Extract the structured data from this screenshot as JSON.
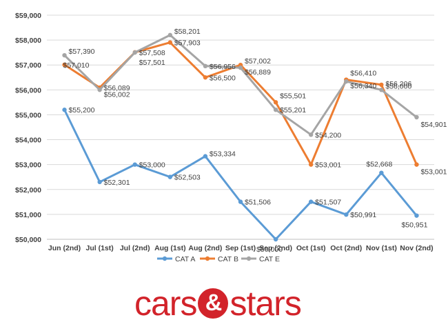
{
  "chart_data": {
    "type": "line",
    "categories": [
      "Jun (2nd)",
      "Jul (1st)",
      "Jul (2nd)",
      "Aug (1st)",
      "Aug (2nd)",
      "Sep (1st)",
      "Sep (2nd)",
      "Oct (1st)",
      "Oct (2nd)",
      "Nov (1st)",
      "Nov (2nd)"
    ],
    "series": [
      {
        "name": "CAT A",
        "color": "#5b9bd5",
        "values": [
          55200,
          52301,
          53000,
          52503,
          53334,
          51506,
          50000,
          51507,
          50991,
          52668,
          50951
        ],
        "labels": [
          "$55,200",
          "$52,301",
          "$53,000",
          "$52,503",
          "$53,334",
          "$51,506",
          "$50,000",
          "$51,507",
          "$50,991",
          "$52,668",
          "$50,951"
        ]
      },
      {
        "name": "CAT B",
        "color": "#ed7d31",
        "values": [
          57010,
          56089,
          57508,
          57903,
          56500,
          57002,
          55501,
          53001,
          56410,
          56206,
          53001
        ],
        "labels": [
          "$57,010",
          "$56,089",
          "$57,508",
          "$57,903",
          "$56,500",
          "$57,002",
          "$55,501",
          "$53,001",
          "$56,410",
          "$56,206",
          "$53,001"
        ]
      },
      {
        "name": "CAT E",
        "color": "#a5a5a5",
        "values": [
          57390,
          56002,
          57501,
          58201,
          56956,
          56889,
          55201,
          54200,
          56340,
          56000,
          54901
        ],
        "labels": [
          "$57,390",
          "$56,002",
          "$57,501",
          "$58,201",
          "$56,956",
          "$56,889",
          "$55,201",
          "$54,200",
          "$56,340",
          "$56,000",
          "$54,901"
        ]
      }
    ],
    "y_ticks": [
      "$50,000",
      "$51,000",
      "$52,000",
      "$53,000",
      "$54,000",
      "$55,000",
      "$56,000",
      "$57,000",
      "$58,000",
      "$59,000"
    ],
    "ylim": [
      50000,
      59000
    ],
    "grid": true,
    "legend_position": "bottom"
  },
  "logo": {
    "part1": "cars",
    "amp": "&",
    "part2": "stars"
  }
}
